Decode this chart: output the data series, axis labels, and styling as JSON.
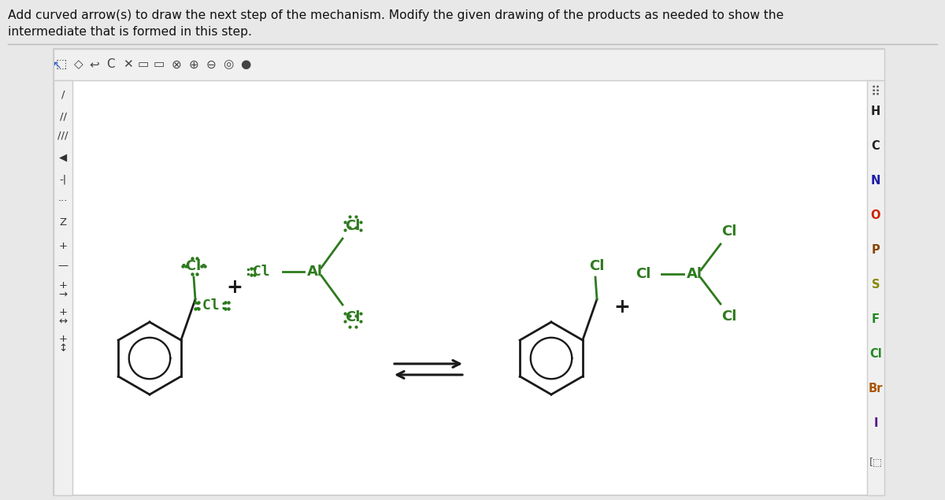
{
  "title_line1": "Add curved arrow(s) to draw the next step of the mechanism. Modify the given drawing of the products as needed to show the",
  "title_line2": "intermediate that is formed in this step.",
  "bg_color": "#e8e8e8",
  "canvas_color": "#ffffff",
  "toolbar_bg": "#ebebeb",
  "green_color": "#2d7a1e",
  "black_color": "#1a1a1a",
  "right_elements": [
    "H",
    "C",
    "N",
    "O",
    "P",
    "S",
    "F",
    "Cl",
    "Br",
    "I"
  ],
  "right_colors": [
    "#222222",
    "#222222",
    "#1a1aaa",
    "#cc2200",
    "#884400",
    "#888800",
    "#228822",
    "#228822",
    "#aa5500",
    "#551188"
  ]
}
